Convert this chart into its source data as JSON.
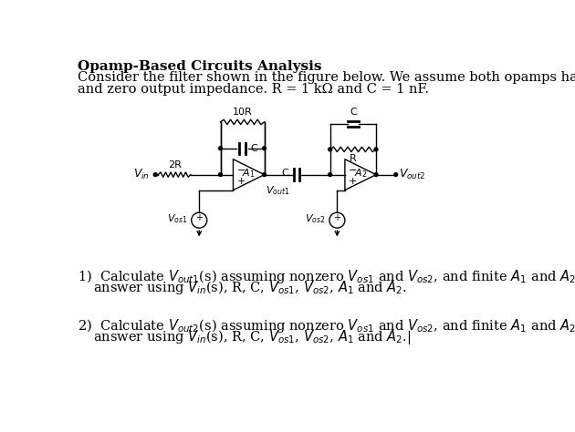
{
  "title": "Opamp-Based Circuits Analysis",
  "intro_line1": "Consider the filter shown in the figure below. We assume both opamps have infinite impedance",
  "intro_line2": "and zero output impedance. R = 1 kΩ and C = 1 nF.",
  "bg_color": "#ffffff",
  "text_color": "#000000",
  "font_size": 10.5,
  "title_font_size": 11
}
